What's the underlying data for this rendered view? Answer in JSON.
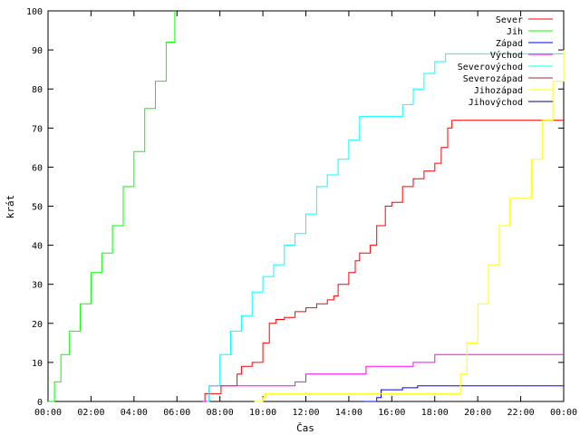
{
  "chart_data": {
    "type": "line",
    "xlabel": "Čas",
    "ylabel": "krát",
    "xlim": [
      0,
      24
    ],
    "ylim": [
      0,
      100
    ],
    "grid": false,
    "legend_position": "top-right",
    "x_ticks": [
      "00:00",
      "02:00",
      "04:00",
      "06:00",
      "08:00",
      "10:00",
      "12:00",
      "14:00",
      "16:00",
      "18:00",
      "20:00",
      "22:00",
      "00:00"
    ],
    "y_ticks": [
      "0",
      "10",
      "20",
      "30",
      "40",
      "50",
      "60",
      "70",
      "80",
      "90",
      "100"
    ],
    "series": [
      {
        "name": "Sever",
        "color": "#ff0000",
        "points": [
          [
            7.25,
            0
          ],
          [
            7.3,
            2
          ],
          [
            8.0,
            2
          ],
          [
            8.05,
            4
          ],
          [
            8.5,
            4
          ],
          [
            8.8,
            7
          ],
          [
            9.0,
            9
          ],
          [
            9.5,
            10
          ],
          [
            10.0,
            15
          ],
          [
            10.3,
            20
          ],
          [
            10.6,
            21
          ],
          [
            11.0,
            21.5
          ],
          [
            11.5,
            23
          ],
          [
            12.0,
            24
          ],
          [
            12.5,
            25
          ],
          [
            13.0,
            26
          ],
          [
            13.3,
            27
          ],
          [
            13.5,
            30
          ],
          [
            14.0,
            33
          ],
          [
            14.3,
            36
          ],
          [
            14.5,
            38
          ],
          [
            15.0,
            40
          ],
          [
            15.3,
            45
          ],
          [
            15.7,
            50
          ],
          [
            16.0,
            51
          ],
          [
            16.5,
            55
          ],
          [
            17.0,
            57
          ],
          [
            17.5,
            59
          ],
          [
            18.0,
            61
          ],
          [
            18.3,
            65
          ],
          [
            18.6,
            70
          ],
          [
            18.8,
            72
          ],
          [
            24.0,
            72
          ]
        ]
      },
      {
        "name": "Jih",
        "color": "#00ff00",
        "points": [
          [
            0.0,
            0
          ],
          [
            0.3,
            5
          ],
          [
            0.6,
            12
          ],
          [
            1.0,
            18
          ],
          [
            1.5,
            25
          ],
          [
            2.0,
            33
          ],
          [
            2.5,
            38
          ],
          [
            3.0,
            45
          ],
          [
            3.5,
            55
          ],
          [
            4.0,
            64
          ],
          [
            4.5,
            75
          ],
          [
            5.0,
            82
          ],
          [
            5.5,
            92
          ],
          [
            5.9,
            100
          ]
        ]
      },
      {
        "name": "Západ",
        "color": "#0000ff",
        "points": [
          [
            14.7,
            0
          ],
          [
            15.3,
            1
          ],
          [
            15.5,
            3
          ],
          [
            16.5,
            3.5
          ],
          [
            17.2,
            4
          ],
          [
            24.0,
            4
          ]
        ]
      },
      {
        "name": "Východ",
        "color": "#ff00ff",
        "points": [
          [
            7.2,
            0
          ],
          [
            7.5,
            4
          ],
          [
            11.0,
            4
          ],
          [
            11.5,
            5
          ],
          [
            12.0,
            7
          ],
          [
            14.0,
            7
          ],
          [
            14.8,
            9
          ],
          [
            17.0,
            10
          ],
          [
            18.0,
            12
          ],
          [
            24.0,
            12
          ]
        ]
      },
      {
        "name": "Severovýchod",
        "color": "#00ffff",
        "points": [
          [
            7.4,
            0
          ],
          [
            7.5,
            4
          ],
          [
            8.0,
            12
          ],
          [
            8.5,
            18
          ],
          [
            9.0,
            22
          ],
          [
            9.5,
            28
          ],
          [
            10.0,
            32
          ],
          [
            10.5,
            35
          ],
          [
            11.0,
            40
          ],
          [
            11.5,
            43
          ],
          [
            12.0,
            48
          ],
          [
            12.5,
            55
          ],
          [
            13.0,
            58
          ],
          [
            13.5,
            62
          ],
          [
            14.0,
            67
          ],
          [
            14.5,
            73
          ],
          [
            16.0,
            73
          ],
          [
            16.5,
            76
          ],
          [
            17.0,
            80
          ],
          [
            17.5,
            84
          ],
          [
            18.0,
            87
          ],
          [
            18.5,
            89
          ],
          [
            24.0,
            89
          ]
        ]
      },
      {
        "name": "Severozápad",
        "color": "#a52a2a",
        "points": []
      },
      {
        "name": "Jihozápad",
        "color": "#ffff00",
        "points": [
          [
            9.6,
            0
          ],
          [
            10.0,
            1
          ],
          [
            10.1,
            2
          ],
          [
            18.9,
            2
          ],
          [
            19.2,
            7
          ],
          [
            19.5,
            15
          ],
          [
            20.0,
            25
          ],
          [
            20.5,
            35
          ],
          [
            21.0,
            45
          ],
          [
            21.5,
            52
          ],
          [
            22.0,
            52
          ],
          [
            22.5,
            62
          ],
          [
            23.0,
            72
          ],
          [
            23.5,
            82
          ],
          [
            24.0,
            90
          ]
        ]
      },
      {
        "name": "Jihovýchod",
        "color": "#000080",
        "points": []
      }
    ]
  }
}
